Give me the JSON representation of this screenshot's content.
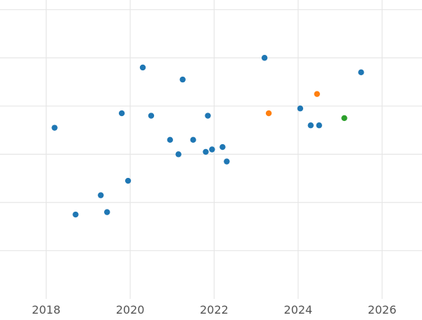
{
  "chart_data": {
    "type": "scatter",
    "title": "",
    "xlabel": "",
    "ylabel": "",
    "xlim": [
      2016.9,
      2026.95
    ],
    "ylim": [
      0,
      6.2
    ],
    "x_ticks": [
      2018,
      2020,
      2022,
      2024,
      2026
    ],
    "y_gridlines": [
      1,
      2,
      3,
      4,
      5,
      6
    ],
    "grid": true,
    "legend": "none",
    "series": [
      {
        "color": "#1f77b4",
        "points": [
          {
            "x": 2018.2,
            "y": 3.55
          },
          {
            "x": 2018.7,
            "y": 1.75
          },
          {
            "x": 2019.3,
            "y": 2.15
          },
          {
            "x": 2019.45,
            "y": 1.8
          },
          {
            "x": 2019.8,
            "y": 3.85
          },
          {
            "x": 2019.95,
            "y": 2.45
          },
          {
            "x": 2020.3,
            "y": 4.8
          },
          {
            "x": 2020.5,
            "y": 3.8
          },
          {
            "x": 2020.95,
            "y": 3.3
          },
          {
            "x": 2021.15,
            "y": 3.0
          },
          {
            "x": 2021.25,
            "y": 4.55
          },
          {
            "x": 2021.5,
            "y": 3.3
          },
          {
            "x": 2021.8,
            "y": 3.05
          },
          {
            "x": 2021.85,
            "y": 3.8
          },
          {
            "x": 2021.95,
            "y": 3.1
          },
          {
            "x": 2022.2,
            "y": 3.15
          },
          {
            "x": 2022.3,
            "y": 2.85
          },
          {
            "x": 2023.2,
            "y": 5.0
          },
          {
            "x": 2024.05,
            "y": 3.95
          },
          {
            "x": 2024.3,
            "y": 3.6
          },
          {
            "x": 2024.5,
            "y": 3.6
          },
          {
            "x": 2025.5,
            "y": 4.7
          }
        ]
      },
      {
        "color": "#ff7f0e",
        "points": [
          {
            "x": 2023.3,
            "y": 3.85
          },
          {
            "x": 2024.45,
            "y": 4.25
          }
        ]
      },
      {
        "color": "#2ca02c",
        "points": [
          {
            "x": 2025.1,
            "y": 3.75
          }
        ]
      }
    ]
  }
}
